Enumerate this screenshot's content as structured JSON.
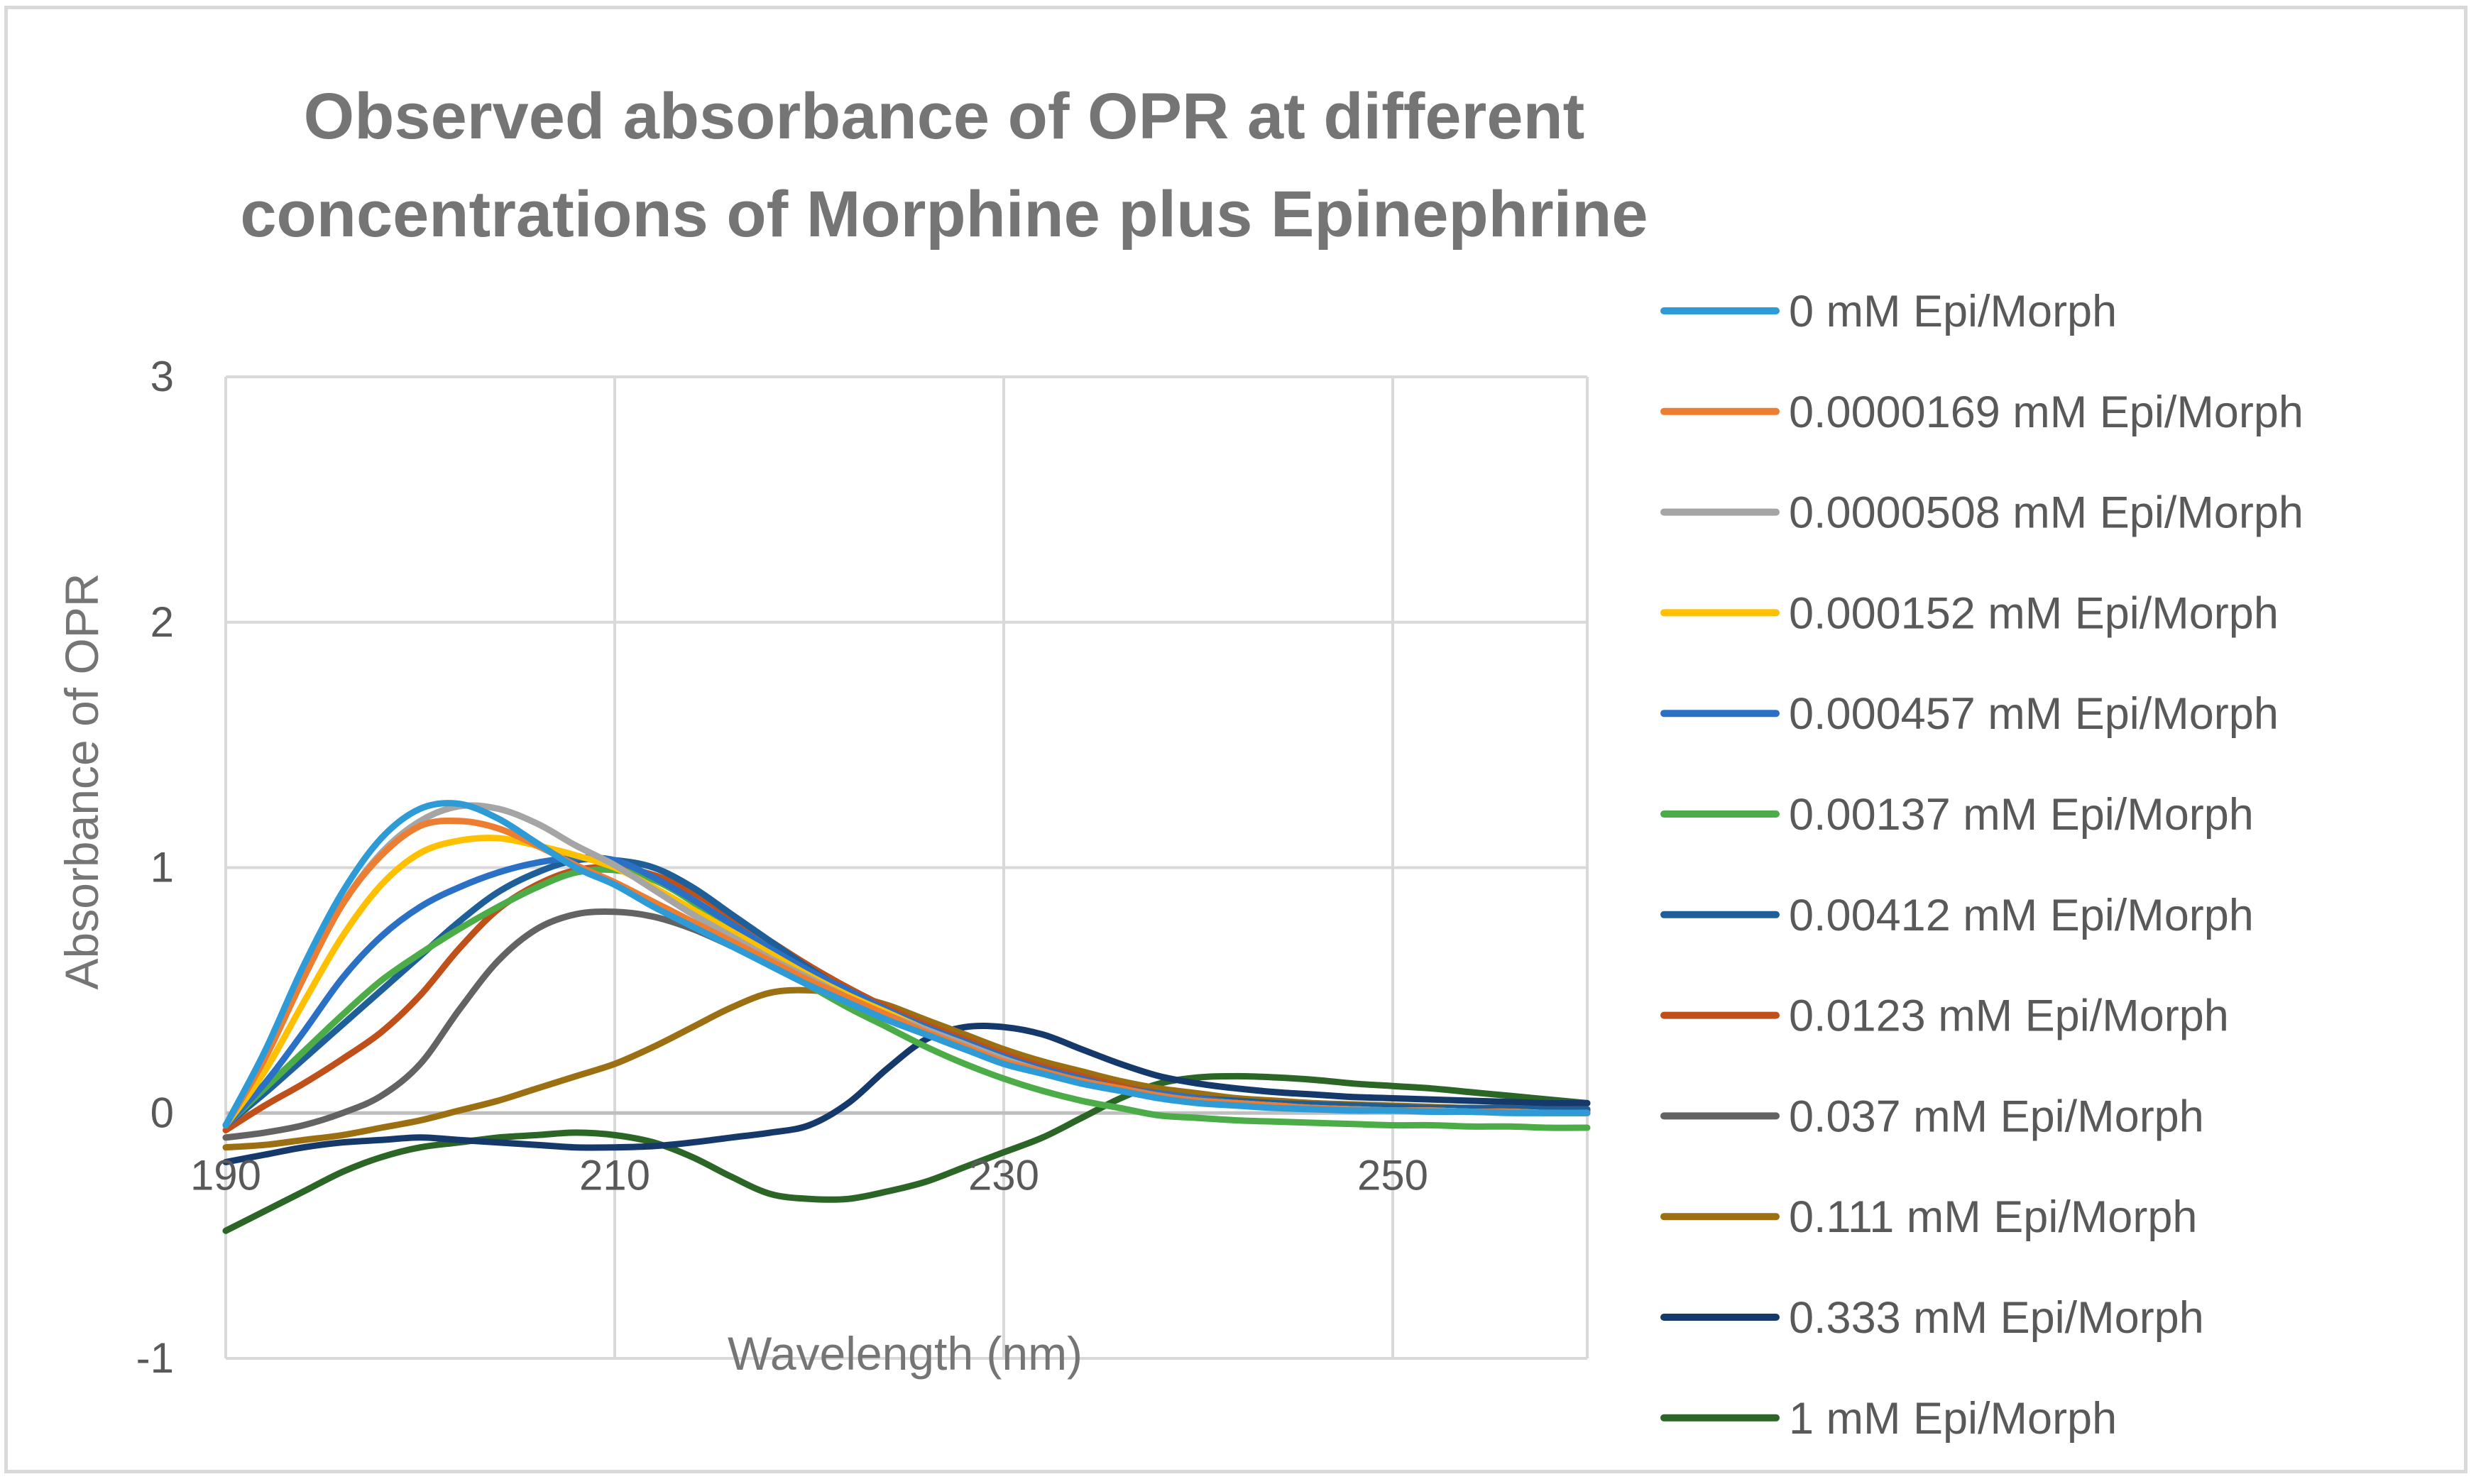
{
  "chart_data": {
    "type": "line",
    "title_lines": [
      "Observed absorbance of OPR at different",
      "concentrations of Morphine plus Epinephrine"
    ],
    "xlabel": "Wavelength (nm)",
    "ylabel": "Absorbance of OPR",
    "xlim": [
      190,
      260
    ],
    "ylim": [
      -1,
      3
    ],
    "x_ticks": [
      190,
      210,
      230,
      250
    ],
    "y_ticks": [
      -1,
      0,
      1,
      2,
      3
    ],
    "x_tick_labels": [
      "190",
      "210",
      "230",
      "250"
    ],
    "y_tick_labels": [
      "-1",
      "0",
      "1",
      "2",
      "3"
    ],
    "grid": true,
    "legend_position": "right",
    "x": [
      190,
      192,
      194,
      196,
      198,
      200,
      202,
      204,
      206,
      208,
      210,
      212,
      214,
      216,
      218,
      220,
      222,
      224,
      226,
      228,
      230,
      232,
      234,
      236,
      238,
      240,
      242,
      244,
      246,
      248,
      250,
      252,
      254,
      256,
      258,
      260
    ],
    "series": [
      {
        "name": "0 mM Epi/Morph",
        "color": "#2e9bd6",
        "values": [
          -0.05,
          0.25,
          0.6,
          0.9,
          1.12,
          1.24,
          1.26,
          1.2,
          1.1,
          1.0,
          0.93,
          0.84,
          0.76,
          0.68,
          0.6,
          0.52,
          0.45,
          0.38,
          0.32,
          0.26,
          0.2,
          0.16,
          0.12,
          0.09,
          0.06,
          0.04,
          0.03,
          0.02,
          0.015,
          0.01,
          0.01,
          0.005,
          0.005,
          0.0,
          0.0,
          0.0
        ]
      },
      {
        "name": "0.0000169 mM Epi/Morph",
        "color": "#ed7d31",
        "values": [
          -0.05,
          0.22,
          0.55,
          0.85,
          1.05,
          1.17,
          1.19,
          1.16,
          1.09,
          1.01,
          0.94,
          0.86,
          0.78,
          0.7,
          0.62,
          0.54,
          0.47,
          0.4,
          0.33,
          0.27,
          0.21,
          0.17,
          0.13,
          0.1,
          0.07,
          0.05,
          0.04,
          0.03,
          0.02,
          0.015,
          0.01,
          0.01,
          0.005,
          0.005,
          0.0,
          0.0
        ]
      },
      {
        "name": "0.0000508 mM Epi/Morph",
        "color": "#a5a5a5",
        "values": [
          -0.05,
          0.22,
          0.55,
          0.85,
          1.06,
          1.19,
          1.25,
          1.24,
          1.18,
          1.09,
          1.01,
          0.91,
          0.81,
          0.72,
          0.63,
          0.55,
          0.47,
          0.4,
          0.34,
          0.28,
          0.22,
          0.17,
          0.13,
          0.1,
          0.07,
          0.05,
          0.04,
          0.03,
          0.02,
          0.015,
          0.01,
          0.01,
          0.005,
          0.005,
          0.0,
          0.0
        ]
      },
      {
        "name": "0.000152 mM Epi/Morph",
        "color": "#ffc000",
        "values": [
          -0.05,
          0.17,
          0.45,
          0.72,
          0.93,
          1.06,
          1.11,
          1.12,
          1.09,
          1.05,
          1.0,
          0.92,
          0.83,
          0.74,
          0.65,
          0.56,
          0.48,
          0.41,
          0.34,
          0.28,
          0.22,
          0.17,
          0.13,
          0.1,
          0.07,
          0.05,
          0.04,
          0.03,
          0.02,
          0.015,
          0.01,
          0.01,
          0.005,
          0.005,
          0.0,
          0.0
        ]
      },
      {
        "name": "0.000457 mM Epi/Morph",
        "color": "#2a70c5",
        "values": [
          -0.05,
          0.12,
          0.33,
          0.55,
          0.72,
          0.84,
          0.92,
          0.98,
          1.02,
          1.04,
          1.03,
          0.96,
          0.87,
          0.77,
          0.67,
          0.58,
          0.5,
          0.42,
          0.35,
          0.29,
          0.23,
          0.18,
          0.14,
          0.1,
          0.08,
          0.06,
          0.04,
          0.03,
          0.02,
          0.015,
          0.01,
          0.01,
          0.005,
          0.005,
          0.0,
          0.0
        ]
      },
      {
        "name": "0.00137 mM Epi/Morph",
        "color": "#4cad48",
        "values": [
          -0.05,
          0.1,
          0.25,
          0.4,
          0.54,
          0.65,
          0.75,
          0.84,
          0.92,
          0.98,
          0.99,
          0.95,
          0.86,
          0.74,
          0.62,
          0.52,
          0.43,
          0.35,
          0.27,
          0.2,
          0.14,
          0.09,
          0.05,
          0.02,
          -0.01,
          -0.02,
          -0.03,
          -0.035,
          -0.04,
          -0.045,
          -0.05,
          -0.05,
          -0.055,
          -0.055,
          -0.06,
          -0.06
        ]
      },
      {
        "name": "0.00412 mM Epi/Morph",
        "color": "#1f5f99",
        "values": [
          -0.05,
          0.08,
          0.22,
          0.36,
          0.5,
          0.64,
          0.78,
          0.9,
          0.98,
          1.03,
          1.03,
          1.0,
          0.92,
          0.81,
          0.7,
          0.59,
          0.49,
          0.41,
          0.34,
          0.28,
          0.22,
          0.17,
          0.13,
          0.1,
          0.08,
          0.06,
          0.05,
          0.04,
          0.035,
          0.03,
          0.025,
          0.02,
          0.02,
          0.02,
          0.015,
          0.015
        ]
      },
      {
        "name": "0.0123 mM Epi/Morph",
        "color": "#c0501a",
        "values": [
          -0.07,
          0.03,
          0.12,
          0.22,
          0.33,
          0.48,
          0.67,
          0.83,
          0.93,
          0.99,
          1.0,
          0.97,
          0.9,
          0.8,
          0.7,
          0.6,
          0.51,
          0.43,
          0.36,
          0.3,
          0.24,
          0.19,
          0.15,
          0.11,
          0.08,
          0.06,
          0.05,
          0.04,
          0.03,
          0.025,
          0.02,
          0.02,
          0.015,
          0.015,
          0.01,
          0.01
        ]
      },
      {
        "name": "0.037 mM Epi/Morph",
        "color": "#636363",
        "values": [
          -0.1,
          -0.08,
          -0.05,
          0.0,
          0.07,
          0.2,
          0.42,
          0.62,
          0.75,
          0.81,
          0.82,
          0.8,
          0.75,
          0.68,
          0.6,
          0.52,
          0.45,
          0.38,
          0.32,
          0.26,
          0.21,
          0.17,
          0.13,
          0.1,
          0.08,
          0.06,
          0.05,
          0.04,
          0.035,
          0.03,
          0.025,
          0.02,
          0.02,
          0.015,
          0.015,
          0.01
        ]
      },
      {
        "name": "0.111 mM Epi/Morph",
        "color": "#9c7012",
        "values": [
          -0.14,
          -0.13,
          -0.11,
          -0.09,
          -0.06,
          -0.03,
          0.01,
          0.05,
          0.1,
          0.15,
          0.2,
          0.27,
          0.35,
          0.43,
          0.49,
          0.5,
          0.48,
          0.44,
          0.38,
          0.32,
          0.26,
          0.21,
          0.17,
          0.13,
          0.1,
          0.08,
          0.06,
          0.05,
          0.04,
          0.035,
          0.03,
          0.025,
          0.02,
          0.02,
          0.015,
          0.015
        ]
      },
      {
        "name": "0.333 mM Epi/Morph",
        "color": "#16396b",
        "values": [
          -0.2,
          -0.17,
          -0.14,
          -0.12,
          -0.11,
          -0.1,
          -0.11,
          -0.12,
          -0.13,
          -0.14,
          -0.14,
          -0.135,
          -0.12,
          -0.1,
          -0.08,
          -0.05,
          0.04,
          0.18,
          0.3,
          0.35,
          0.35,
          0.32,
          0.26,
          0.2,
          0.15,
          0.12,
          0.1,
          0.085,
          0.075,
          0.065,
          0.06,
          0.055,
          0.05,
          0.045,
          0.04,
          0.04
        ]
      },
      {
        "name": "1 mM Epi/Morph",
        "color": "#2b6626",
        "values": [
          -0.48,
          -0.4,
          -0.32,
          -0.24,
          -0.18,
          -0.14,
          -0.12,
          -0.1,
          -0.09,
          -0.08,
          -0.09,
          -0.12,
          -0.18,
          -0.26,
          -0.33,
          -0.35,
          -0.35,
          -0.32,
          -0.28,
          -0.22,
          -0.16,
          -0.1,
          -0.02,
          0.06,
          0.12,
          0.145,
          0.15,
          0.145,
          0.135,
          0.12,
          0.11,
          0.1,
          0.085,
          0.07,
          0.055,
          0.04
        ]
      }
    ]
  }
}
